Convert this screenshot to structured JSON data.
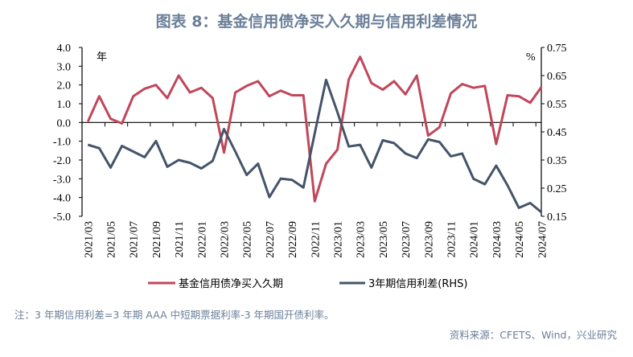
{
  "title": "图表 8：基金信用债净买入久期与信用利差情况",
  "note": "注：3 年期信用利差=3 年期 AAA 中短期票据利率-3 年期国开债利率。",
  "source": "资料来源：CFETS、Wind，兴业研究",
  "chart_data": {
    "type": "line",
    "title": "",
    "left_unit": "年",
    "right_unit": "%",
    "categories": [
      "2021/03",
      "2021/04",
      "2021/05",
      "2021/06",
      "2021/07",
      "2021/08",
      "2021/09",
      "2021/10",
      "2021/11",
      "2021/12",
      "2022/01",
      "2022/02",
      "2022/03",
      "2022/04",
      "2022/05",
      "2022/06",
      "2022/07",
      "2022/08",
      "2022/09",
      "2022/10",
      "2022/11",
      "2022/12",
      "2023/01",
      "2023/02",
      "2023/03",
      "2023/04",
      "2023/05",
      "2023/06",
      "2023/07",
      "2023/08",
      "2023/09",
      "2023/10",
      "2023/11",
      "2023/12",
      "2024/01",
      "2024/02",
      "2024/03",
      "2024/04",
      "2024/05",
      "2024/06",
      "2024/07"
    ],
    "x_tick_labels": [
      "2021/03",
      "2021/05",
      "2021/07",
      "2021/09",
      "2021/11",
      "2022/01",
      "2022/03",
      "2022/05",
      "2022/07",
      "2022/09",
      "2022/11",
      "2023/01",
      "2023/03",
      "2023/05",
      "2023/07",
      "2023/09",
      "2023/11",
      "2024/01",
      "2024/03",
      "2024/05",
      "2024/07"
    ],
    "left_axis": {
      "ylim": [
        -5,
        4
      ],
      "ticks": [
        "4.0",
        "3.0",
        "2.0",
        "1.0",
        "0.0",
        "-1.0",
        "-2.0",
        "-3.0",
        "-4.0",
        "-5.0"
      ]
    },
    "right_axis": {
      "ylim": [
        0.15,
        0.75
      ],
      "ticks": [
        "0.75",
        "0.65",
        "0.55",
        "0.45",
        "0.35",
        "0.25",
        "0.15"
      ]
    },
    "grid": false,
    "legend_position": "bottom",
    "series": [
      {
        "name": "基金信用债净买入久期",
        "axis": "left",
        "color": "#c0475a",
        "values": [
          0.05,
          1.4,
          0.2,
          -0.05,
          1.4,
          1.8,
          2.0,
          1.3,
          2.5,
          1.6,
          1.85,
          1.3,
          -1.6,
          1.6,
          1.95,
          2.2,
          1.4,
          1.7,
          1.45,
          1.45,
          -4.2,
          -2.2,
          -1.45,
          2.3,
          3.5,
          2.1,
          1.75,
          2.2,
          1.5,
          2.5,
          -0.7,
          -0.25,
          1.55,
          2.05,
          1.85,
          1.95,
          -1.15,
          1.45,
          1.4,
          1.05,
          1.9
        ]
      },
      {
        "name": "3年期信用利差(RHS)",
        "axis": "right",
        "color": "#44546a",
        "values": [
          0.404,
          0.392,
          0.323,
          0.4,
          0.38,
          0.36,
          0.417,
          0.326,
          0.35,
          0.34,
          0.32,
          0.347,
          0.46,
          0.38,
          0.297,
          0.337,
          0.218,
          0.284,
          0.279,
          0.252,
          0.445,
          0.635,
          0.52,
          0.398,
          0.404,
          0.323,
          0.42,
          0.41,
          0.373,
          0.357,
          0.423,
          0.414,
          0.363,
          0.373,
          0.283,
          0.264,
          0.33,
          0.26,
          0.18,
          0.197,
          0.164
        ]
      }
    ]
  }
}
